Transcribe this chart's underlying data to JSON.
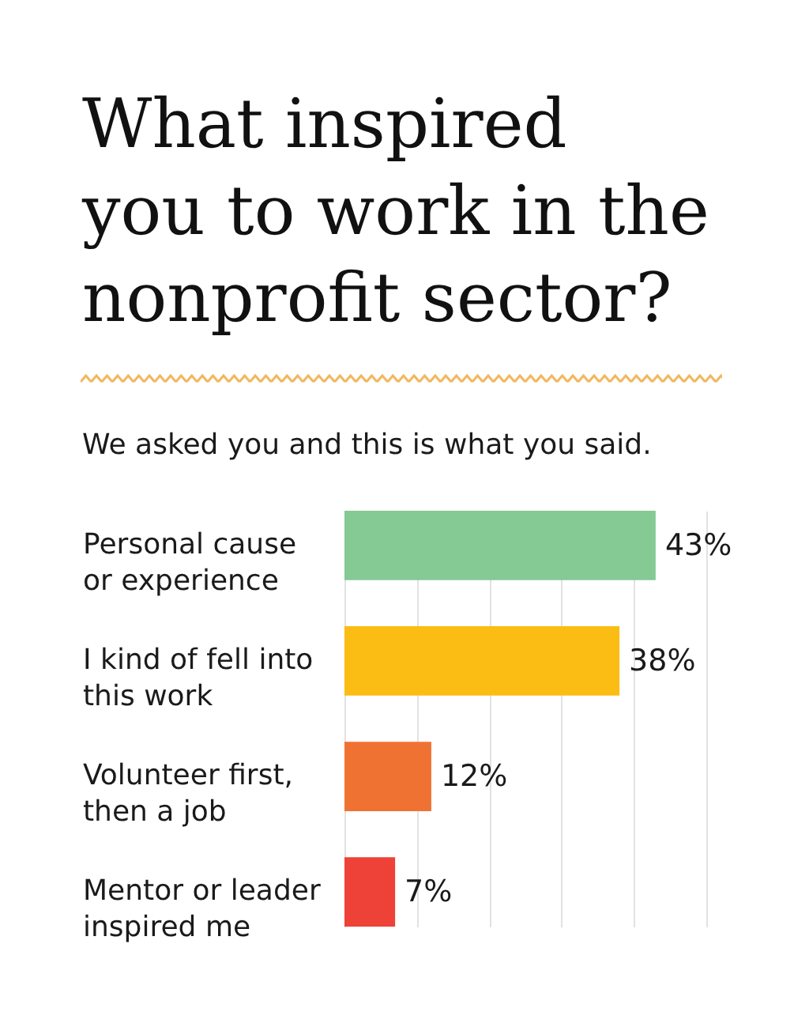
{
  "chart_data": {
    "type": "bar",
    "orientation": "horizontal",
    "title": "What inspired\nyou to work in the\nnonprofit sector?",
    "subtitle": "We asked you and this is what you said.",
    "categories": [
      "Personal cause or experience",
      "I kind of fell into this work",
      "Volunteer first, then a job",
      "Mentor or leader inspired me"
    ],
    "values": [
      43,
      38,
      12,
      7
    ],
    "colors": [
      "#85c994",
      "#fbbc14",
      "#f07232",
      "#ee4137"
    ],
    "value_labels": [
      "43%",
      "38%",
      "12%",
      "7%"
    ],
    "xlim": [
      0,
      50
    ],
    "xticks": [
      0,
      10,
      20,
      30,
      40,
      50
    ],
    "grid": "x",
    "tick_labels": "y"
  }
}
